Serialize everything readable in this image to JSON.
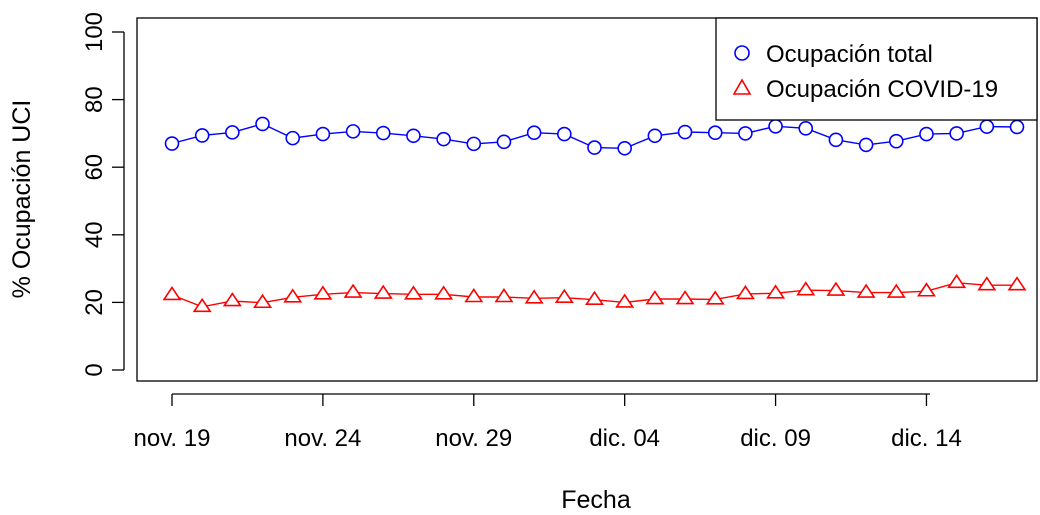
{
  "chart_data": {
    "type": "line",
    "xlabel": "Fecha",
    "ylabel": "% Ocupación UCI",
    "ylim": [
      0,
      100
    ],
    "y_ticks": [
      0,
      20,
      40,
      60,
      80,
      100
    ],
    "x": [
      "2020-11-19",
      "2020-11-20",
      "2020-11-21",
      "2020-11-22",
      "2020-11-23",
      "2020-11-24",
      "2020-11-25",
      "2020-11-26",
      "2020-11-27",
      "2020-11-28",
      "2020-11-29",
      "2020-11-30",
      "2020-12-01",
      "2020-12-02",
      "2020-12-03",
      "2020-12-04",
      "2020-12-05",
      "2020-12-06",
      "2020-12-07",
      "2020-12-08",
      "2020-12-09",
      "2020-12-10",
      "2020-12-11",
      "2020-12-12",
      "2020-12-13",
      "2020-12-14",
      "2020-12-15",
      "2020-12-16",
      "2020-12-17"
    ],
    "x_ticks": [
      {
        "date": "2020-11-19",
        "label": "nov. 19"
      },
      {
        "date": "2020-11-24",
        "label": "nov. 24"
      },
      {
        "date": "2020-11-29",
        "label": "nov. 29"
      },
      {
        "date": "2020-12-04",
        "label": "dic. 04"
      },
      {
        "date": "2020-12-09",
        "label": "dic. 09"
      },
      {
        "date": "2020-12-14",
        "label": "dic. 14"
      }
    ],
    "series": [
      {
        "name": "Ocupación total",
        "color": "#0000ff",
        "marker": "circle",
        "values": [
          67.0,
          69.4,
          70.3,
          72.8,
          68.6,
          69.8,
          70.6,
          70.1,
          69.3,
          68.3,
          66.9,
          67.5,
          70.2,
          69.8,
          65.8,
          65.6,
          69.3,
          70.4,
          70.2,
          70.0,
          72.1,
          71.5,
          68.1,
          66.6,
          67.7,
          69.8,
          70.0,
          72.0,
          71.9
        ]
      },
      {
        "name": "Ocupación COVID-19",
        "color": "#ff0000",
        "marker": "triangle",
        "values": [
          22.2,
          18.7,
          20.4,
          19.9,
          21.5,
          22.4,
          22.9,
          22.6,
          22.4,
          22.4,
          21.6,
          21.6,
          21.2,
          21.4,
          20.8,
          20.0,
          21.0,
          21.0,
          20.9,
          22.5,
          22.7,
          23.6,
          23.5,
          22.9,
          22.9,
          23.3,
          25.8,
          25.1,
          25.1
        ]
      }
    ],
    "legend": {
      "position": "top-right"
    },
    "grid": false
  }
}
